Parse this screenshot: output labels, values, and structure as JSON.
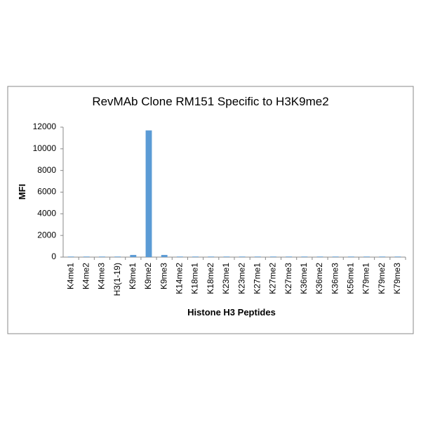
{
  "chart_data": {
    "type": "bar",
    "title": "RevMAb Clone RM151 Specific to H3K9me2",
    "x_label": "Histone H3 Peptides",
    "y_label": "MFI",
    "categories": [
      "K4me1",
      "K4me2",
      "K4me3",
      "H3(1-19)",
      "K9me1",
      "K9me2",
      "K9me3",
      "K14me2",
      "K18me1",
      "K18me2",
      "K23me1",
      "K23me2",
      "K27me1",
      "K27me2",
      "K27me3",
      "K36me1",
      "K36me2",
      "K36me3",
      "K56me1",
      "K79me1",
      "K79me2",
      "K79me3"
    ],
    "values": [
      50,
      50,
      50,
      50,
      200,
      11700,
      200,
      50,
      50,
      50,
      50,
      50,
      50,
      50,
      50,
      50,
      50,
      50,
      50,
      50,
      50,
      50
    ],
    "color": "#5b9bd5",
    "ylim": [
      0,
      12000
    ],
    "yticks": [
      0,
      2000,
      4000,
      6000,
      8000,
      10000,
      12000
    ],
    "grid": false
  }
}
